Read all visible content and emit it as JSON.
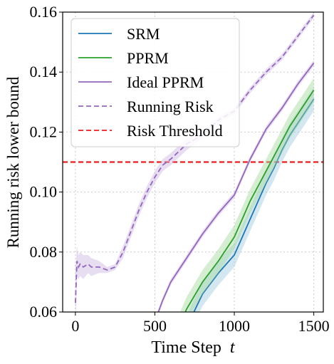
{
  "chart_data": {
    "type": "line",
    "title": "",
    "xlabel": "Time Step",
    "xlabel_var": "t",
    "ylabel": "Running risk lower bound",
    "xlim": [
      -80,
      1560
    ],
    "ylim": [
      0.06,
      0.16
    ],
    "x_ticks": [
      0,
      500,
      1000,
      1500
    ],
    "x_tick_labels": [
      "0",
      "500",
      "1000",
      "1500"
    ],
    "y_ticks": [
      0.06,
      0.08,
      0.1,
      0.12,
      0.14,
      0.16
    ],
    "y_tick_labels": [
      "0.06",
      "0.08",
      "0.10",
      "0.12",
      "0.14",
      "0.16"
    ],
    "grid": true,
    "legend_position": "top-left",
    "threshold": 0.11,
    "series": [
      {
        "name": "SRM",
        "style": "solid",
        "color": "#1f77b4",
        "band_color": "#9ecae1",
        "x": [
          700,
          800,
          900,
          1000,
          1050,
          1100,
          1150,
          1200,
          1250,
          1300,
          1350,
          1400,
          1450,
          1500
        ],
        "y": [
          0.055,
          0.066,
          0.073,
          0.079,
          0.085,
          0.091,
          0.097,
          0.103,
          0.108,
          0.114,
          0.119,
          0.123,
          0.127,
          0.131
        ],
        "band": [
          0.004,
          0.004,
          0.004,
          0.004,
          0.004,
          0.004,
          0.004,
          0.004,
          0.004,
          0.004,
          0.004,
          0.004,
          0.004,
          0.004
        ]
      },
      {
        "name": "PPRM",
        "style": "solid",
        "color": "#2ca02c",
        "band_color": "#a1d99b",
        "x": [
          650,
          700,
          800,
          900,
          1000,
          1050,
          1100,
          1150,
          1200,
          1250,
          1300,
          1350,
          1400,
          1450,
          1500
        ],
        "y": [
          0.055,
          0.061,
          0.07,
          0.077,
          0.085,
          0.091,
          0.097,
          0.102,
          0.107,
          0.112,
          0.117,
          0.122,
          0.126,
          0.13,
          0.134
        ],
        "band": [
          0.004,
          0.004,
          0.004,
          0.004,
          0.004,
          0.004,
          0.004,
          0.004,
          0.004,
          0.004,
          0.004,
          0.004,
          0.004,
          0.004,
          0.004
        ]
      },
      {
        "name": "Ideal PPRM",
        "style": "solid",
        "color": "#9467bd",
        "band_color": "#cbb5e3",
        "x": [
          480,
          550,
          600,
          700,
          800,
          900,
          1000,
          1100,
          1200,
          1300,
          1400,
          1500
        ],
        "y": [
          0.054,
          0.064,
          0.07,
          0.078,
          0.086,
          0.093,
          0.099,
          0.111,
          0.121,
          0.128,
          0.136,
          0.143
        ],
        "band": [
          0.001,
          0.001,
          0.001,
          0.001,
          0.001,
          0.001,
          0.001,
          0.001,
          0.001,
          0.001,
          0.001,
          0.001
        ]
      },
      {
        "name": "Running Risk",
        "style": "dashed",
        "color": "#9467bd",
        "band_color": "#cbb5e3",
        "x": [
          0,
          10,
          20,
          30,
          50,
          80,
          100,
          150,
          200,
          250,
          300,
          350,
          400,
          450,
          500,
          550,
          600,
          700,
          800,
          900,
          1000,
          1100,
          1200,
          1300,
          1400,
          1500
        ],
        "y": [
          0.063,
          0.077,
          0.075,
          0.076,
          0.075,
          0.076,
          0.075,
          0.075,
          0.074,
          0.075,
          0.08,
          0.087,
          0.094,
          0.1,
          0.105,
          0.109,
          0.111,
          0.116,
          0.119,
          0.124,
          0.127,
          0.134,
          0.14,
          0.145,
          0.152,
          0.159
        ],
        "band": [
          0.012,
          0.005,
          0.004,
          0.004,
          0.004,
          0.003,
          0.003,
          0.002,
          0.001,
          0.001,
          0.002,
          0.002,
          0.002,
          0.002,
          0.002,
          0.002,
          0.002,
          0.002,
          0.001,
          0.001,
          0.001,
          0.001,
          0.001,
          0.001,
          0.001,
          0.001
        ]
      },
      {
        "name": "Risk Threshold",
        "style": "dashed",
        "color": "#ee1c1c",
        "x": [
          -80,
          1560
        ],
        "y": [
          0.11,
          0.11
        ]
      }
    ]
  }
}
